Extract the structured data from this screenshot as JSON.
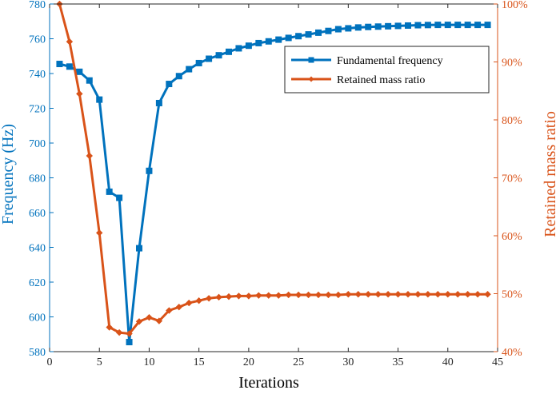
{
  "chart_data": {
    "type": "line",
    "title": "",
    "xlabel": "Iterations",
    "ylabel_left": "Frequency (Hz)",
    "ylabel_right": "Retained mass ratio",
    "xlim": [
      0,
      45
    ],
    "ylim_left": [
      580,
      780
    ],
    "ylim_right": [
      40,
      100
    ],
    "x_ticks": [
      0,
      5,
      10,
      15,
      20,
      25,
      30,
      35,
      40,
      45
    ],
    "y_ticks_left": [
      580,
      600,
      620,
      640,
      660,
      680,
      700,
      720,
      740,
      760,
      780
    ],
    "y_ticks_right": [
      "40%",
      "50%",
      "60%",
      "70%",
      "80%",
      "90%",
      "100%"
    ],
    "y_ticks_right_values": [
      40,
      50,
      60,
      70,
      80,
      90,
      100
    ],
    "grid": false,
    "legend_position": "top-right",
    "colors": {
      "frequency": "#0072BD",
      "mass": "#D95319"
    },
    "x": [
      1,
      2,
      3,
      4,
      5,
      6,
      7,
      8,
      9,
      10,
      11,
      12,
      13,
      14,
      15,
      16,
      17,
      18,
      19,
      20,
      21,
      22,
      23,
      24,
      25,
      26,
      27,
      28,
      29,
      30,
      31,
      32,
      33,
      34,
      35,
      36,
      37,
      38,
      39,
      40,
      41,
      42,
      43,
      44
    ],
    "series": [
      {
        "name": "Fundamental frequency",
        "axis": "left",
        "marker": "square",
        "values": [
          745.5,
          744,
          741,
          736,
          725,
          672,
          668.5,
          585.5,
          639.5,
          684,
          723,
          734,
          738.5,
          742.5,
          746,
          748.5,
          750.5,
          752.5,
          754.5,
          756,
          757.5,
          758.5,
          759.5,
          760.5,
          761.5,
          762.5,
          763.5,
          764.5,
          765.5,
          766,
          766.5,
          766.8,
          767,
          767.2,
          767.4,
          767.6,
          767.8,
          767.9,
          768,
          768,
          768,
          768,
          768,
          768
        ]
      },
      {
        "name": "Retained mass ratio",
        "axis": "right",
        "marker": "diamond",
        "values": [
          100,
          93.5,
          84.5,
          73.8,
          60.5,
          44.2,
          43.3,
          43.1,
          45.2,
          45.9,
          45.3,
          47.1,
          47.7,
          48.4,
          48.8,
          49.2,
          49.4,
          49.5,
          49.6,
          49.6,
          49.7,
          49.7,
          49.7,
          49.8,
          49.8,
          49.8,
          49.8,
          49.8,
          49.8,
          49.9,
          49.9,
          49.9,
          49.9,
          49.9,
          49.9,
          49.9,
          49.9,
          49.9,
          49.9,
          49.9,
          49.9,
          49.9,
          49.9,
          49.9
        ]
      }
    ]
  }
}
